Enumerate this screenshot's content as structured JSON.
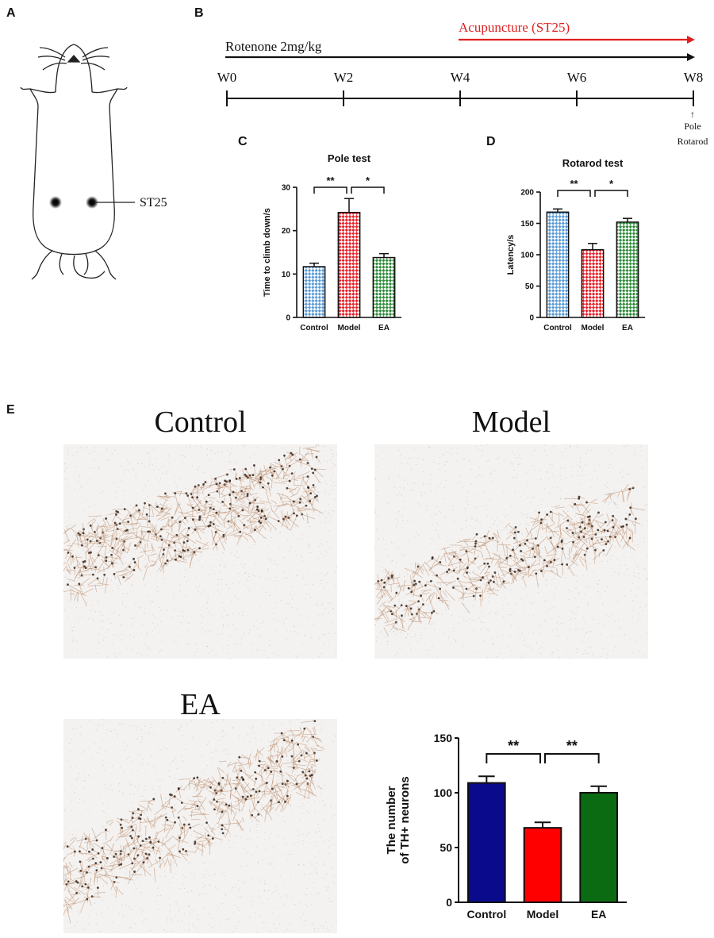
{
  "panels": {
    "a": "A",
    "b": "B",
    "c": "C",
    "d": "D",
    "e": "E"
  },
  "panel_a": {
    "point_label": "ST25"
  },
  "panel_b": {
    "rotenone_label": "Rotenone 2mg/kg",
    "acupuncture_label": "Acupuncture (ST25)",
    "weeks": [
      "W0",
      "W2",
      "W4",
      "W6",
      "W8"
    ],
    "endpoint_labels": [
      "Pole",
      "Rotarod"
    ],
    "colors": {
      "timeline": "#000000",
      "acupuncture": "#e02020"
    }
  },
  "panel_e": {
    "image_titles": [
      "Control",
      "Model",
      "EA"
    ]
  },
  "chart_data": [
    {
      "type": "bar",
      "title": "Pole test",
      "ylabel": "Time to climb down/s",
      "categories": [
        "Control",
        "Model",
        "EA"
      ],
      "values": [
        11.7,
        24.2,
        13.8
      ],
      "errors": [
        0.8,
        3.2,
        0.9
      ],
      "ylim": [
        0,
        30
      ],
      "yticks": [
        0,
        10,
        20,
        30
      ],
      "significance": [
        {
          "from": 0,
          "to": 1,
          "label": "**"
        },
        {
          "from": 1,
          "to": 2,
          "label": "*"
        }
      ],
      "pattern": "checkered",
      "colors": [
        "#5b9bd5",
        "#e8212a",
        "#2e8b3a"
      ]
    },
    {
      "type": "bar",
      "title": "Rotarod test",
      "ylabel": "Latency/s",
      "categories": [
        "Control",
        "Model",
        "EA"
      ],
      "values": [
        168,
        108,
        152
      ],
      "errors": [
        5,
        10,
        6
      ],
      "ylim": [
        0,
        200
      ],
      "yticks": [
        0,
        50,
        100,
        150,
        200
      ],
      "significance": [
        {
          "from": 0,
          "to": 1,
          "label": "**"
        },
        {
          "from": 1,
          "to": 2,
          "label": "*"
        }
      ],
      "pattern": "checkered",
      "colors": [
        "#5b9bd5",
        "#e8212a",
        "#2e8b3a"
      ]
    },
    {
      "type": "bar",
      "title": "",
      "ylabel": "The number of TH+ neurons",
      "ylabel_lines": [
        "The number",
        "of TH+ neurons"
      ],
      "categories": [
        "Control",
        "Model",
        "EA"
      ],
      "values": [
        109,
        68,
        100
      ],
      "errors": [
        6,
        5,
        6
      ],
      "ylim": [
        0,
        150
      ],
      "yticks": [
        0,
        50,
        100,
        150
      ],
      "significance": [
        {
          "from": 0,
          "to": 1,
          "label": "**"
        },
        {
          "from": 1,
          "to": 2,
          "label": "**"
        }
      ],
      "pattern": "solid",
      "colors": [
        "#0a0a8c",
        "#ff0000",
        "#0b6b12"
      ]
    }
  ]
}
